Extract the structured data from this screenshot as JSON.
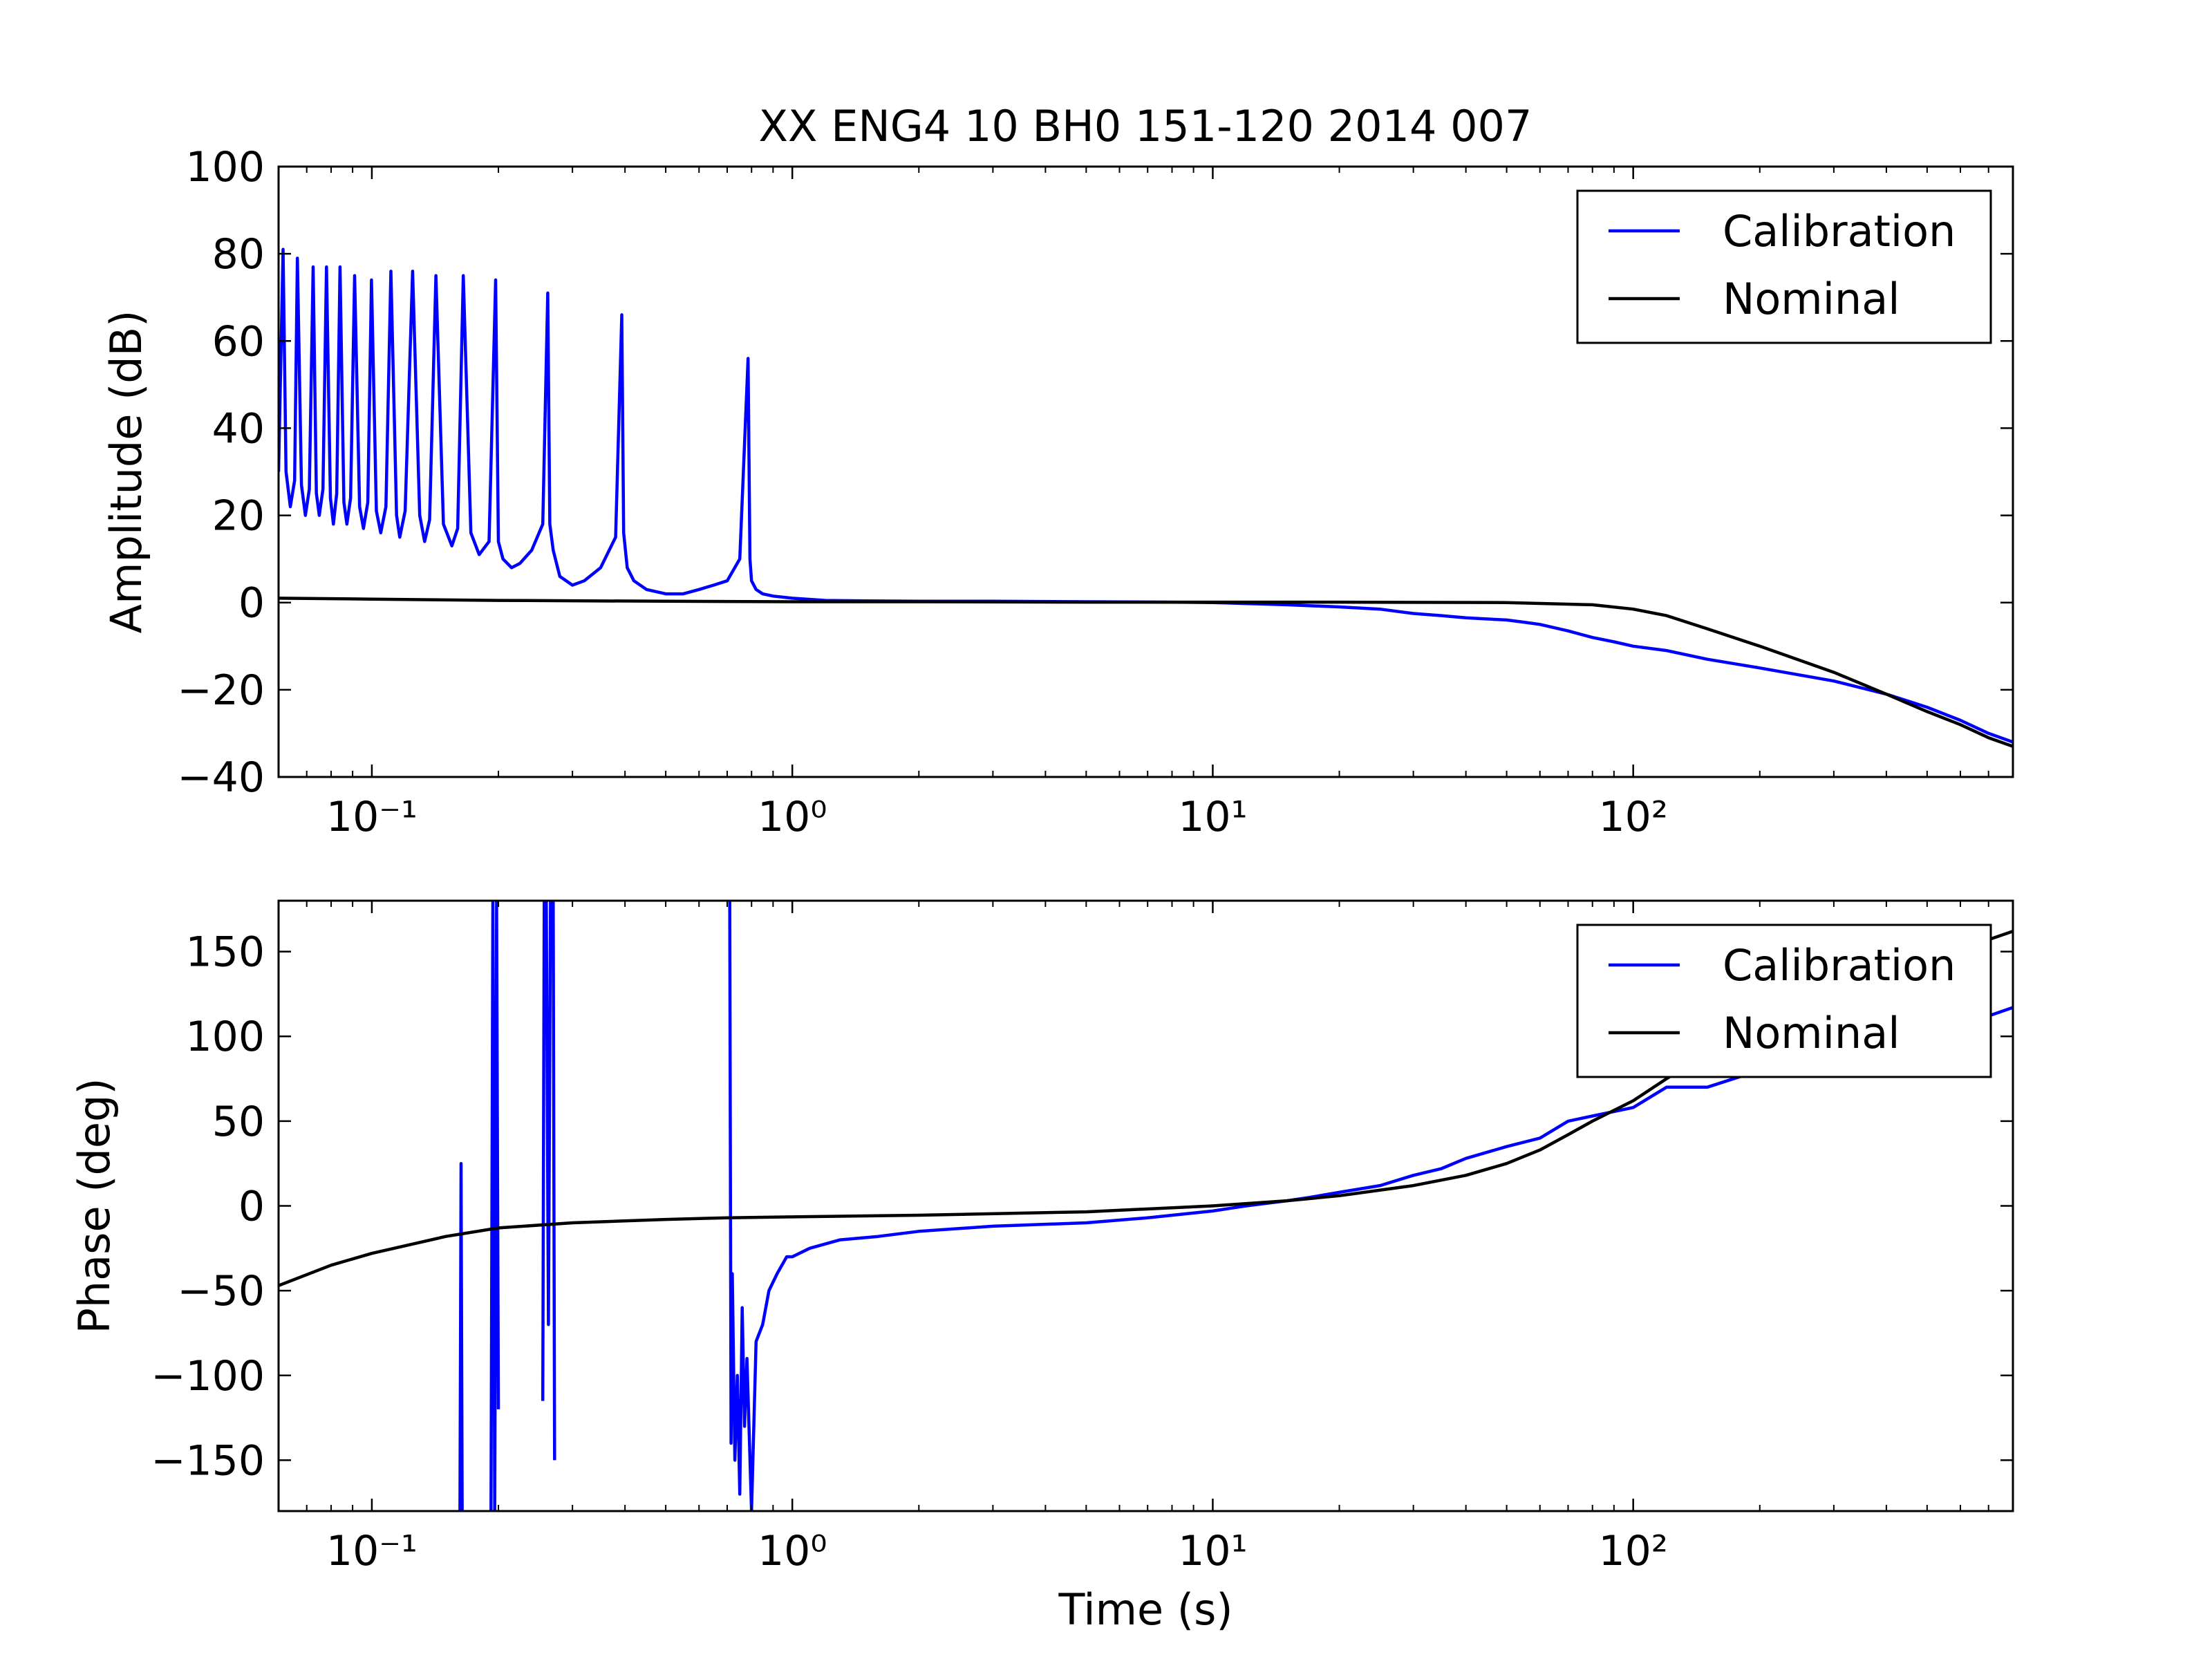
{
  "figure": {
    "title": "XX ENG4 10 BH0 151-120 2014 007"
  },
  "chart_data": [
    {
      "type": "line",
      "title": "XX ENG4 10 BH0 151-120 2014 007",
      "xlabel": "",
      "ylabel": "Amplitude (dB)",
      "xscale": "log",
      "xlim": [
        0.06,
        800
      ],
      "ylim": [
        -40,
        100
      ],
      "xticks": [
        {
          "value": 0.1,
          "label": "10⁻¹"
        },
        {
          "value": 1,
          "label": "10⁰"
        },
        {
          "value": 10,
          "label": "10¹"
        },
        {
          "value": 100,
          "label": "10²"
        }
      ],
      "yticks": [
        {
          "value": 100,
          "label": "100"
        },
        {
          "value": 80,
          "label": "80"
        },
        {
          "value": 60,
          "label": "60"
        },
        {
          "value": 40,
          "label": "40"
        },
        {
          "value": 20,
          "label": "20"
        },
        {
          "value": 0,
          "label": "0"
        },
        {
          "value": -20,
          "label": "−20"
        },
        {
          "value": -40,
          "label": "−40"
        }
      ],
      "grid": false,
      "legend": {
        "position": "top-right",
        "entries": [
          "Calibration",
          "Nominal"
        ]
      },
      "series": [
        {
          "name": "Calibration",
          "color": "#0000ff",
          "x": [
            0.06,
            0.0615,
            0.0625,
            0.064,
            0.0655,
            0.0665,
            0.068,
            0.0695,
            0.071,
            0.0725,
            0.0738,
            0.075,
            0.0765,
            0.078,
            0.0797,
            0.081,
            0.0825,
            0.084,
            0.0858,
            0.0872,
            0.089,
            0.091,
            0.0935,
            0.0955,
            0.0978,
            0.0998,
            0.1025,
            0.105,
            0.108,
            0.111,
            0.1145,
            0.1165,
            0.12,
            0.125,
            0.13,
            0.1335,
            0.1372,
            0.142,
            0.148,
            0.155,
            0.16,
            0.165,
            0.172,
            0.18,
            0.19,
            0.197,
            0.2,
            0.205,
            0.215,
            0.225,
            0.24,
            0.255,
            0.262,
            0.265,
            0.27,
            0.28,
            0.3,
            0.32,
            0.35,
            0.38,
            0.393,
            0.397,
            0.405,
            0.42,
            0.45,
            0.5,
            0.55,
            0.6,
            0.65,
            0.7,
            0.75,
            0.785,
            0.793,
            0.8,
            0.82,
            0.85,
            0.9,
            1.0,
            1.2,
            1.5,
            2.0,
            3.0,
            5.0,
            8.0,
            10,
            15,
            20,
            25,
            30,
            35,
            40,
            50,
            55,
            60,
            70,
            80,
            90,
            100,
            120,
            150,
            200,
            300,
            400,
            500,
            600,
            700,
            800
          ],
          "y": [
            30,
            81,
            30,
            22,
            28,
            79,
            27,
            20,
            26,
            77,
            25,
            20,
            26,
            77,
            24,
            18,
            25,
            77,
            23,
            18,
            24,
            75,
            22,
            17,
            23,
            74,
            21,
            16,
            22,
            76,
            20,
            15,
            21,
            76,
            20,
            14,
            19,
            75,
            18,
            13,
            17,
            75,
            16,
            11,
            14,
            74,
            14,
            10,
            8,
            9,
            12,
            18,
            71,
            18,
            12,
            6,
            4,
            5,
            8,
            15,
            66,
            16,
            8,
            5,
            3,
            2,
            2,
            3,
            4,
            5,
            10,
            56,
            10,
            5,
            3,
            2,
            1.5,
            1,
            0.5,
            0.4,
            0.3,
            0.3,
            0.2,
            0.1,
            0.0,
            -0.5,
            -1,
            -1.5,
            -2.5,
            -3,
            -3.5,
            -4,
            -4.5,
            -5,
            -6.5,
            -8,
            -9,
            -10,
            -11,
            -13,
            -15,
            -18,
            -21,
            -24,
            -27,
            -30,
            -32
          ]
        },
        {
          "name": "Nominal",
          "color": "#000000",
          "x": [
            0.06,
            0.1,
            0.2,
            0.5,
            1,
            2,
            5,
            10,
            20,
            50,
            80,
            100,
            120,
            150,
            200,
            300,
            400,
            500,
            600,
            700,
            800
          ],
          "y": [
            1.0,
            0.8,
            0.5,
            0.3,
            0.2,
            0.2,
            0.1,
            0.1,
            0.1,
            0.0,
            -0.5,
            -1.5,
            -3,
            -6,
            -10,
            -16,
            -21,
            -25,
            -28,
            -31,
            -33
          ]
        }
      ]
    },
    {
      "type": "line",
      "title": "",
      "xlabel": "Time (s)",
      "ylabel": "Phase (deg)",
      "xscale": "log",
      "xlim": [
        0.06,
        800
      ],
      "ylim": [
        -180,
        180
      ],
      "xticks": [
        {
          "value": 0.1,
          "label": "10⁻¹"
        },
        {
          "value": 1,
          "label": "10⁰"
        },
        {
          "value": 10,
          "label": "10¹"
        },
        {
          "value": 100,
          "label": "10²"
        }
      ],
      "yticks": [
        {
          "value": 150,
          "label": "150"
        },
        {
          "value": 100,
          "label": "100"
        },
        {
          "value": 50,
          "label": "50"
        },
        {
          "value": 0,
          "label": "0"
        },
        {
          "value": -50,
          "label": "−50"
        },
        {
          "value": -100,
          "label": "−100"
        },
        {
          "value": -150,
          "label": "−150"
        }
      ],
      "grid": false,
      "legend": {
        "position": "top-right",
        "entries": [
          "Calibration",
          "Nominal"
        ]
      },
      "series": [
        {
          "name": "Calibration",
          "color": "#0000ff",
          "segments": [
            {
              "x": [
                0.162,
                0.163,
                0.164
              ],
              "y": [
                -180,
                25,
                -180
              ]
            },
            {
              "x": [
                0.192,
                0.194,
                0.196,
                0.198,
                0.2
              ],
              "y": [
                -180,
                180,
                -180,
                180,
                -120
              ]
            },
            {
              "x": [
                0.255,
                0.257,
                0.26,
                0.263,
                0.266,
                0.27,
                0.272
              ],
              "y": [
                -115,
                180,
                180,
                -70,
                180,
                180,
                -150
              ]
            },
            {
              "x": [
                0.71,
                0.715,
                0.72,
                0.73,
                0.74,
                0.75,
                0.76,
                0.77,
                0.78,
                0.8,
                0.82,
                0.85,
                0.88,
                0.92,
                0.97,
                1.0,
                1.1,
                1.3,
                1.6,
                2.0,
                3.0,
                5.0,
                7.0,
                10,
                12,
                15,
                17,
                20,
                25,
                30,
                35,
                40,
                50,
                60,
                70,
                80,
                100,
                120,
                150,
                200,
                300,
                400,
                500,
                600,
                700,
                800
              ],
              "y": [
                180,
                -140,
                -40,
                -150,
                -100,
                -170,
                -60,
                -130,
                -90,
                -180,
                -80,
                -70,
                -50,
                -40,
                -30,
                -30,
                -25,
                -20,
                -18,
                -15,
                -12,
                -10,
                -7,
                -3,
                0,
                3,
                5,
                8,
                12,
                18,
                22,
                28,
                35,
                40,
                50,
                53,
                58,
                70,
                70,
                80,
                85,
                95,
                100,
                105,
                112,
                117
              ]
            }
          ]
        },
        {
          "name": "Nominal",
          "color": "#000000",
          "x": [
            0.06,
            0.08,
            0.1,
            0.15,
            0.2,
            0.3,
            0.5,
            0.7,
            1,
            2,
            5,
            10,
            15,
            20,
            30,
            40,
            50,
            60,
            70,
            80,
            100,
            120,
            150,
            200,
            300,
            400,
            500,
            600,
            700,
            800
          ],
          "y": [
            -47,
            -35,
            -28,
            -18,
            -13,
            -10,
            -8,
            -7,
            -6.5,
            -5.5,
            -3.5,
            0,
            3,
            6,
            12,
            18,
            25,
            33,
            42,
            50,
            62,
            75,
            90,
            108,
            128,
            140,
            148,
            153,
            157,
            162
          ]
        }
      ]
    }
  ]
}
